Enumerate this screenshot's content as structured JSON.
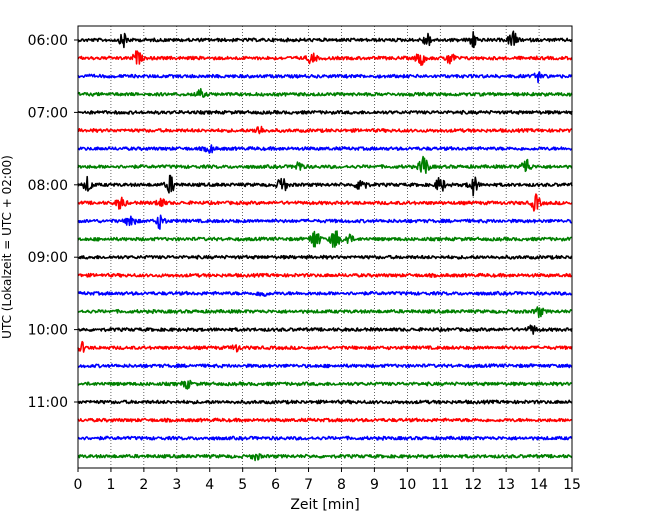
{
  "chart_data": {
    "type": "line",
    "subtype": "helicorder",
    "xlabel": "Zeit  [min]",
    "ylabel": "UTC (Lokalzeit = UTC + 02:00)",
    "xlim": [
      0,
      15
    ],
    "x_ticks": [
      "0",
      "1",
      "2",
      "3",
      "4",
      "5",
      "6",
      "7",
      "8",
      "9",
      "10",
      "11",
      "12",
      "13",
      "14",
      "15"
    ],
    "y_tick_labels": [
      "06:00",
      "07:00",
      "08:00",
      "09:00",
      "10:00",
      "11:00"
    ],
    "grid": "vertical dotted at each minute",
    "trace_interval_minutes": 15,
    "trace_colors": [
      "#000000",
      "#ff0000",
      "#0000ff",
      "#008000"
    ],
    "traces": [
      {
        "start": "06:00",
        "bursts": [
          {
            "t": 1.4,
            "amp": 0.9
          },
          {
            "t": 10.6,
            "amp": 0.8
          },
          {
            "t": 12.0,
            "amp": 1.0
          },
          {
            "t": 13.2,
            "amp": 1.1
          }
        ]
      },
      {
        "start": "06:15",
        "bursts": [
          {
            "t": 1.8,
            "amp": 0.8
          },
          {
            "t": 7.1,
            "amp": 0.7
          },
          {
            "t": 10.4,
            "amp": 0.9
          },
          {
            "t": 11.3,
            "amp": 0.8
          }
        ]
      },
      {
        "start": "06:30",
        "bursts": [
          {
            "t": 14.0,
            "amp": 0.6
          }
        ]
      },
      {
        "start": "06:45",
        "bursts": [
          {
            "t": 3.7,
            "amp": 0.5
          }
        ]
      },
      {
        "start": "07:00",
        "bursts": []
      },
      {
        "start": "07:15",
        "bursts": [
          {
            "t": 5.5,
            "amp": 0.6
          }
        ]
      },
      {
        "start": "07:30",
        "bursts": [
          {
            "t": 4.0,
            "amp": 0.5
          }
        ]
      },
      {
        "start": "07:45",
        "bursts": [
          {
            "t": 6.7,
            "amp": 0.6
          },
          {
            "t": 10.5,
            "amp": 1.5
          },
          {
            "t": 13.6,
            "amp": 1.1
          }
        ]
      },
      {
        "start": "08:00",
        "bursts": [
          {
            "t": 0.3,
            "amp": 0.9
          },
          {
            "t": 2.8,
            "amp": 1.1
          },
          {
            "t": 6.2,
            "amp": 1.1
          },
          {
            "t": 8.6,
            "amp": 1.2
          },
          {
            "t": 11.0,
            "amp": 1.0
          },
          {
            "t": 12.0,
            "amp": 1.2
          }
        ]
      },
      {
        "start": "08:15",
        "bursts": [
          {
            "t": 1.3,
            "amp": 0.8
          },
          {
            "t": 2.5,
            "amp": 0.6
          },
          {
            "t": 13.9,
            "amp": 1.0
          }
        ]
      },
      {
        "start": "08:30",
        "bursts": [
          {
            "t": 1.6,
            "amp": 0.9
          },
          {
            "t": 2.5,
            "amp": 0.9
          }
        ]
      },
      {
        "start": "08:45",
        "bursts": [
          {
            "t": 7.2,
            "amp": 1.4
          },
          {
            "t": 7.8,
            "amp": 1.3
          },
          {
            "t": 8.2,
            "amp": 0.7
          }
        ]
      },
      {
        "start": "09:00",
        "bursts": []
      },
      {
        "start": "09:15",
        "bursts": []
      },
      {
        "start": "09:30",
        "bursts": [
          {
            "t": 5.6,
            "amp": 0.4
          }
        ]
      },
      {
        "start": "09:45",
        "bursts": [
          {
            "t": 14.0,
            "amp": 0.6
          }
        ]
      },
      {
        "start": "10:00",
        "bursts": [
          {
            "t": 13.8,
            "amp": 0.5
          }
        ]
      },
      {
        "start": "10:15",
        "bursts": [
          {
            "t": 0.1,
            "amp": 0.6
          },
          {
            "t": 4.8,
            "amp": 0.4
          }
        ]
      },
      {
        "start": "10:30",
        "bursts": []
      },
      {
        "start": "10:45",
        "bursts": [
          {
            "t": 3.3,
            "amp": 0.5
          }
        ]
      },
      {
        "start": "11:00",
        "bursts": []
      },
      {
        "start": "11:15",
        "bursts": []
      },
      {
        "start": "11:30",
        "bursts": []
      },
      {
        "start": "11:45",
        "bursts": [
          {
            "t": 5.4,
            "amp": 0.4
          }
        ]
      }
    ]
  }
}
